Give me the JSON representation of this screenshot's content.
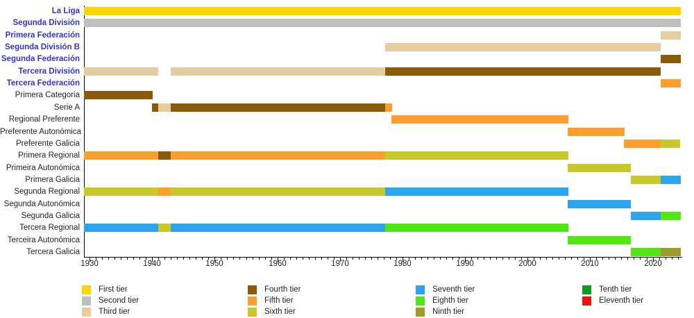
{
  "styles": {
    "link_color": "#3333CC",
    "text_color": "#202122",
    "axis_color": "#000000",
    "background": "#FFFFFF"
  },
  "chart_data": {
    "type": "bar",
    "subtype": "horizontal-timeline",
    "title": "",
    "xlabel": "",
    "ylabel": "",
    "grid": false,
    "legend_position": "bottom",
    "axis": {
      "x_start": 1929.1,
      "x_end": 2024.6,
      "decade_ticks": [
        1930,
        1940,
        1950,
        1960,
        1970,
        1980,
        1990,
        2000,
        2010,
        2020
      ],
      "minor_tick_interval": 1
    },
    "tier_colors": {
      "first": "#FFD403",
      "second": "#C0C0C0",
      "third": "#E5CDA0",
      "fourth": "#8B5A09",
      "fifth": "#FD9F2E",
      "sixth": "#C7C829",
      "seventh": "#2BA6EE",
      "eighth": "#50E813",
      "ninth": "#9D9C24",
      "tenth": "#109C23",
      "eleventh": "#FA0C0C"
    },
    "rows": [
      {
        "label": "La Liga",
        "link": true,
        "segments": [
          {
            "start": 1929.1,
            "end": 2024.5,
            "tier": "first"
          }
        ]
      },
      {
        "label": "Segunda División",
        "link": true,
        "segments": [
          {
            "start": 1929.1,
            "end": 2024.5,
            "tier": "second"
          }
        ]
      },
      {
        "label": "Primera Federación",
        "link": true,
        "segments": [
          {
            "start": 2021.3,
            "end": 2024.5,
            "tier": "third"
          }
        ]
      },
      {
        "label": "Segunda División B",
        "link": true,
        "segments": [
          {
            "start": 1977.2,
            "end": 2021.3,
            "tier": "third"
          }
        ]
      },
      {
        "label": "Segunda Federación",
        "link": true,
        "segments": [
          {
            "start": 2021.3,
            "end": 2024.5,
            "tier": "fourth"
          }
        ]
      },
      {
        "label": "Tercera División",
        "link": true,
        "segments": [
          {
            "start": 1929.1,
            "end": 1941.0,
            "tier": "third"
          },
          {
            "start": 1943.0,
            "end": 1977.2,
            "tier": "third"
          },
          {
            "start": 1977.2,
            "end": 2021.3,
            "tier": "fourth"
          }
        ]
      },
      {
        "label": "Tercera Federación",
        "link": true,
        "segments": [
          {
            "start": 2021.3,
            "end": 2024.5,
            "tier": "fifth"
          }
        ]
      },
      {
        "label": "Primera Categoria",
        "link": false,
        "segments": [
          {
            "start": 1929.1,
            "end": 1940.1,
            "tier": "fourth"
          }
        ]
      },
      {
        "label": "Serie A",
        "link": false,
        "segments": [
          {
            "start": 1940.0,
            "end": 1941.0,
            "tier": "fourth"
          },
          {
            "start": 1941.0,
            "end": 1943.0,
            "tier": "third"
          },
          {
            "start": 1943.0,
            "end": 1977.2,
            "tier": "fourth"
          },
          {
            "start": 1977.2,
            "end": 1978.3,
            "tier": "fifth"
          }
        ]
      },
      {
        "label": "Regional Preferente",
        "link": false,
        "segments": [
          {
            "start": 1978.2,
            "end": 2006.5,
            "tier": "fifth"
          }
        ]
      },
      {
        "label": "Preferente Autonómica",
        "link": false,
        "segments": [
          {
            "start": 2006.4,
            "end": 2015.5,
            "tier": "fifth"
          }
        ]
      },
      {
        "label": "Preferente Galicia",
        "link": false,
        "segments": [
          {
            "start": 2015.4,
            "end": 2021.3,
            "tier": "fifth"
          },
          {
            "start": 2021.3,
            "end": 2024.4,
            "tier": "sixth"
          }
        ]
      },
      {
        "label": "Primera Regional",
        "link": false,
        "segments": [
          {
            "start": 1929.1,
            "end": 1941.0,
            "tier": "fifth"
          },
          {
            "start": 1941.0,
            "end": 1943.0,
            "tier": "fourth"
          },
          {
            "start": 1943.0,
            "end": 1977.2,
            "tier": "fifth"
          },
          {
            "start": 1977.2,
            "end": 2006.5,
            "tier": "sixth"
          }
        ]
      },
      {
        "label": "Primeira Autonómica",
        "link": false,
        "segments": [
          {
            "start": 2006.4,
            "end": 2016.5,
            "tier": "sixth"
          }
        ]
      },
      {
        "label": "Primera Galicia",
        "link": false,
        "segments": [
          {
            "start": 2016.5,
            "end": 2021.3,
            "tier": "sixth"
          },
          {
            "start": 2021.3,
            "end": 2024.5,
            "tier": "seventh"
          }
        ]
      },
      {
        "label": "Segunda Regional",
        "link": false,
        "segments": [
          {
            "start": 1929.1,
            "end": 1941.0,
            "tier": "sixth"
          },
          {
            "start": 1941.0,
            "end": 1943.0,
            "tier": "fifth"
          },
          {
            "start": 1943.0,
            "end": 1977.2,
            "tier": "sixth"
          },
          {
            "start": 1977.2,
            "end": 2006.5,
            "tier": "seventh"
          }
        ]
      },
      {
        "label": "Segunda Autonómica",
        "link": false,
        "segments": [
          {
            "start": 2006.4,
            "end": 2016.5,
            "tier": "seventh"
          }
        ]
      },
      {
        "label": "Segunda Galicia",
        "link": false,
        "segments": [
          {
            "start": 2016.5,
            "end": 2021.3,
            "tier": "seventh"
          },
          {
            "start": 2021.3,
            "end": 2024.5,
            "tier": "eighth"
          }
        ]
      },
      {
        "label": "Tercera Regional",
        "link": false,
        "segments": [
          {
            "start": 1929.1,
            "end": 1941.0,
            "tier": "seventh"
          },
          {
            "start": 1941.0,
            "end": 1943.0,
            "tier": "sixth"
          },
          {
            "start": 1943.0,
            "end": 1977.2,
            "tier": "seventh"
          },
          {
            "start": 1977.2,
            "end": 2006.5,
            "tier": "eighth"
          }
        ]
      },
      {
        "label": "Terceira Autonómica",
        "link": false,
        "segments": [
          {
            "start": 2006.4,
            "end": 2016.5,
            "tier": "eighth"
          }
        ]
      },
      {
        "label": "Tercera Galicia",
        "link": false,
        "segments": [
          {
            "start": 2016.5,
            "end": 2021.3,
            "tier": "eighth"
          },
          {
            "start": 2021.3,
            "end": 2024.5,
            "tier": "ninth"
          }
        ]
      }
    ],
    "legend_columns": [
      [
        {
          "label": "First tier",
          "tier": "first"
        },
        {
          "label": "Second tier",
          "tier": "second"
        },
        {
          "label": "Third tier",
          "tier": "third"
        }
      ],
      [
        {
          "label": "Fourth tier",
          "tier": "fourth"
        },
        {
          "label": "Fifth tier",
          "tier": "fifth"
        },
        {
          "label": "Sixth tier",
          "tier": "sixth"
        }
      ],
      [
        {
          "label": "Seventh tier",
          "tier": "seventh"
        },
        {
          "label": "Eighth tier",
          "tier": "eighth"
        },
        {
          "label": "Ninth tier",
          "tier": "ninth"
        }
      ],
      [
        {
          "label": "Tenth tier",
          "tier": "tenth"
        },
        {
          "label": "Eleventh tier",
          "tier": "eleventh"
        }
      ]
    ]
  }
}
